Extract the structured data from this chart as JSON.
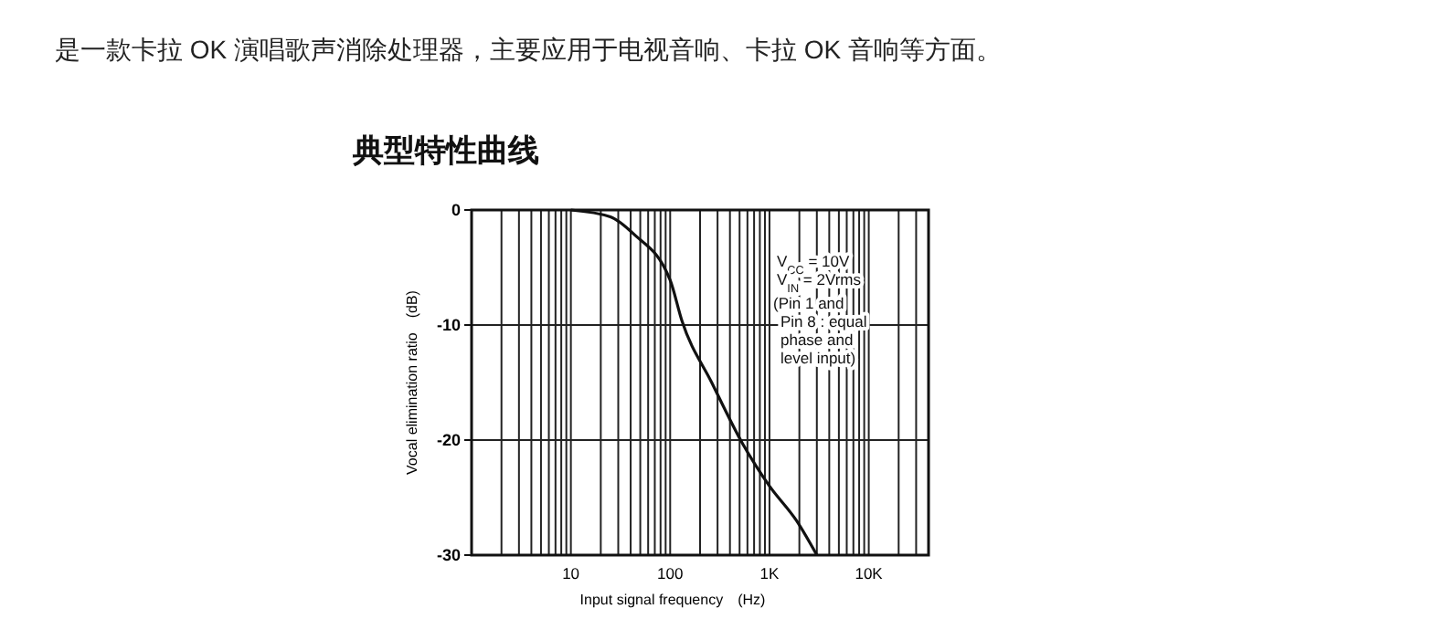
{
  "chart_data": {
    "type": "line",
    "title": "典型特性曲线",
    "xlabel": "Input signal frequency　(Hz)",
    "ylabel": "Vocal elimination ratio　(dB)",
    "annotations": [
      "是一款卡拉 OK 演唱歌声消除处理器，主要应用于电视音响、卡拉 OK 音响等方面。",
      {
        "text": "V$_{CC}$ = 10V"
      },
      {
        "text": "V$_{IN}$ = 2Vrms"
      },
      {
        "text": "(Pin 1 and"
      },
      {
        "text": "Pin 8 : equal"
      },
      {
        "text": "phase and"
      },
      {
        "text": "level input)"
      }
    ],
    "log": "x",
    "grid": true,
    "xlim": [
      1,
      40000
    ],
    "ylim": [
      -30,
      0
    ],
    "xticks": [
      {
        "value": 10,
        "label": "10"
      },
      {
        "value": 100,
        "label": "100"
      },
      {
        "value": 1000,
        "label": "1K"
      },
      {
        "value": 10000,
        "label": "10K"
      }
    ],
    "yticks": [
      0,
      -10,
      -20,
      -30
    ],
    "series": [
      {
        "color": "#111111",
        "x": [
          10,
          25,
          43,
          100,
          131,
          262,
          535,
          1000,
          1870,
          3000
        ],
        "values": [
          0,
          -0.6,
          -2.1,
          -6.1,
          -9.6,
          -15,
          -20.3,
          -24,
          -27,
          -30
        ]
      }
    ]
  }
}
